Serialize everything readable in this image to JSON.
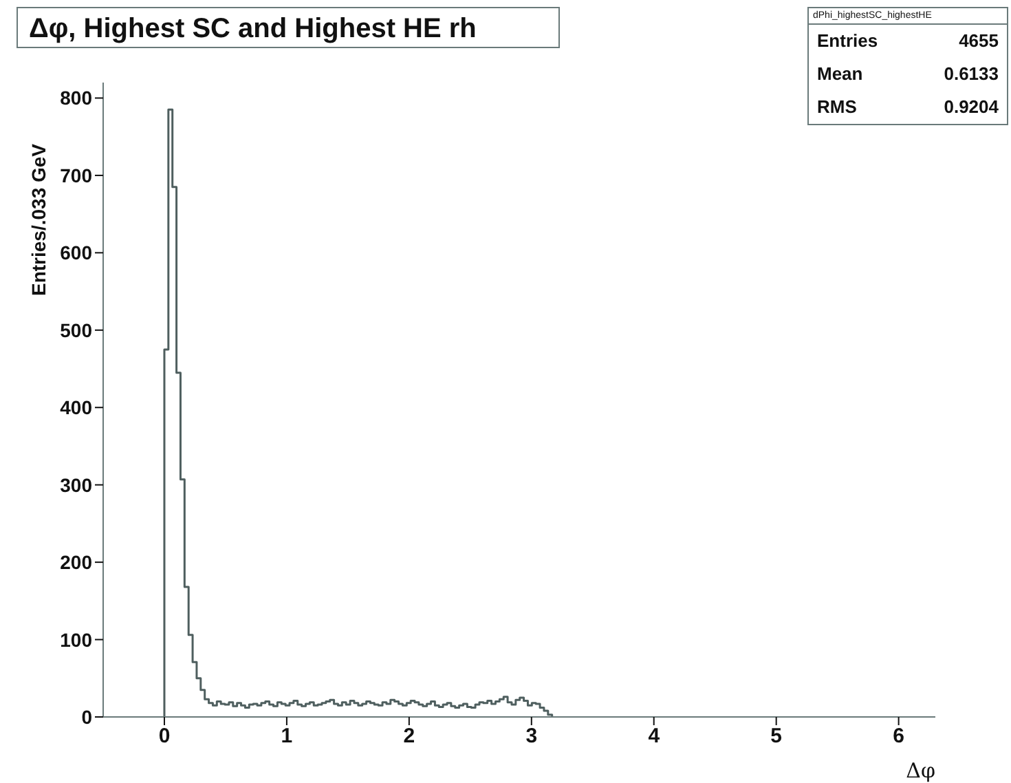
{
  "chart_data": {
    "type": "histogram",
    "title": "Δφ, Highest SC and Highest HE rh",
    "xlabel": "Δφ",
    "ylabel": "Entries/.033 GeV",
    "annotations": [
      "dPhi_highestSC_highestHE",
      "Entries",
      "4655",
      "Mean",
      "0.6133",
      "RMS",
      "0.9204"
    ],
    "color": "#4f5f5f",
    "bins": [
      0,
      0.033,
      0.066,
      0.099,
      0.132,
      0.165,
      0.198,
      0.231,
      0.264,
      0.297,
      0.33,
      0.363,
      0.396,
      0.429,
      0.462,
      0.495,
      0.528,
      0.561,
      0.594,
      0.627,
      0.66,
      0.693,
      0.726,
      0.759,
      0.792,
      0.825,
      0.858,
      0.891,
      0.924,
      0.957,
      0.99,
      1.023,
      1.056,
      1.089,
      1.122,
      1.155,
      1.188,
      1.221,
      1.254,
      1.287,
      1.32,
      1.353,
      1.386,
      1.419,
      1.452,
      1.485,
      1.518,
      1.551,
      1.584,
      1.617,
      1.65,
      1.683,
      1.716,
      1.749,
      1.782,
      1.815,
      1.848,
      1.881,
      1.914,
      1.947,
      1.98,
      2.013,
      2.046,
      2.079,
      2.112,
      2.145,
      2.178,
      2.211,
      2.244,
      2.277,
      2.31,
      2.343,
      2.376,
      2.409,
      2.442,
      2.475,
      2.508,
      2.541,
      2.574,
      2.607,
      2.64,
      2.673,
      2.706,
      2.739,
      2.772,
      2.805,
      2.838,
      2.871,
      2.904,
      2.937,
      2.97,
      3.003,
      3.036,
      3.069,
      3.102,
      3.135,
      3.168
    ],
    "values": [
      475,
      785,
      685,
      445,
      307,
      168,
      106,
      71,
      50,
      35,
      23,
      18,
      15,
      20,
      17,
      16,
      19,
      14,
      18,
      15,
      12,
      16,
      17,
      15,
      18,
      20,
      16,
      14,
      19,
      17,
      15,
      18,
      21,
      16,
      14,
      17,
      19,
      15,
      16,
      18,
      20,
      22,
      17,
      15,
      19,
      16,
      21,
      18,
      15,
      17,
      20,
      18,
      16,
      15,
      19,
      17,
      22,
      20,
      17,
      15,
      18,
      21,
      19,
      16,
      14,
      17,
      20,
      15,
      13,
      16,
      18,
      14,
      12,
      15,
      17,
      13,
      12,
      16,
      19,
      18,
      21,
      17,
      20,
      23,
      26,
      19,
      16,
      22,
      25,
      21,
      15,
      18,
      17,
      12,
      8,
      3
    ],
    "xlim": [
      -0.5,
      6.3
    ],
    "xticks": [
      0,
      1,
      2,
      3,
      4,
      5,
      6
    ],
    "ylim": [
      0,
      820
    ],
    "yticks": [
      0,
      100,
      200,
      300,
      400,
      500,
      600,
      700,
      800
    ]
  }
}
